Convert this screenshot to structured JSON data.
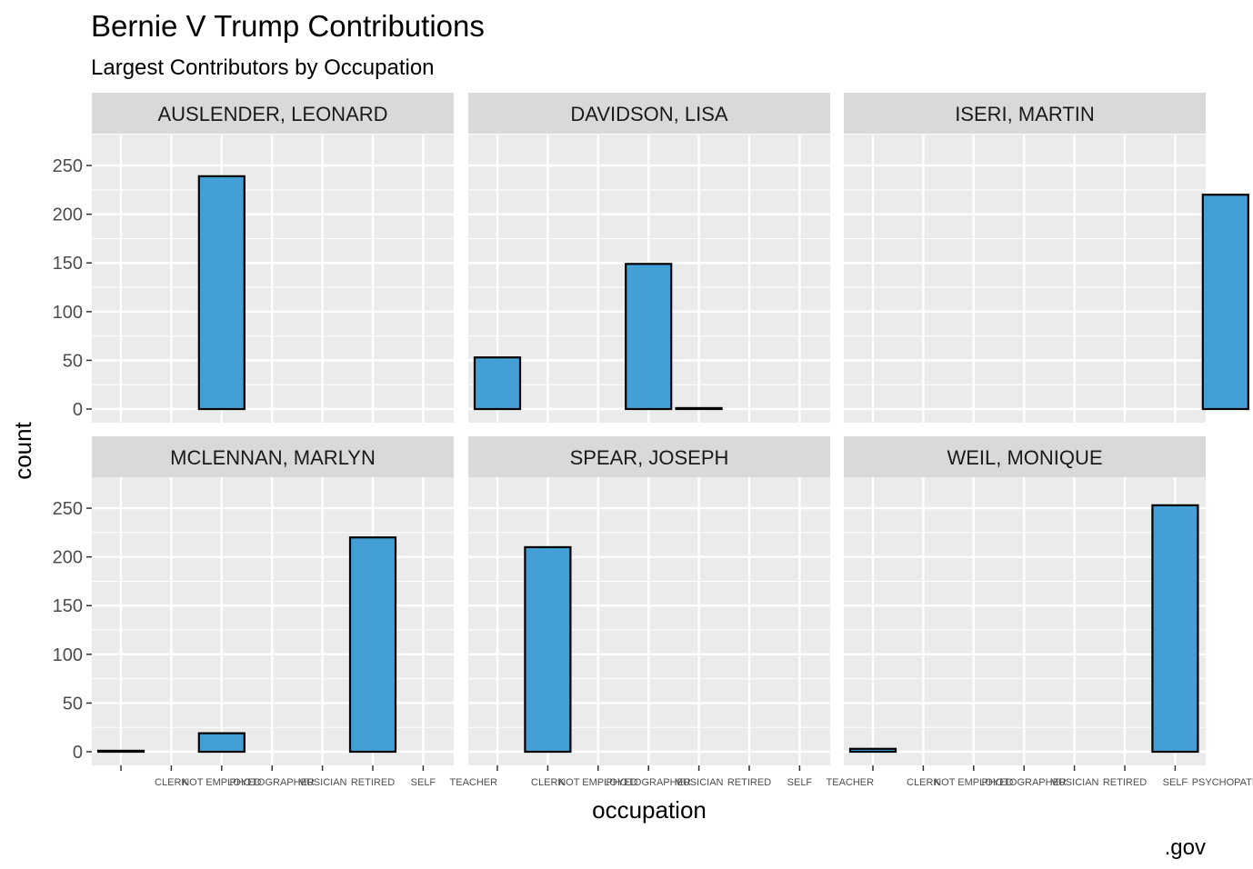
{
  "chart_data": {
    "type": "bar",
    "title": "Bernie V Trump Contributions",
    "subtitle": "Largest Contributors by Occupation",
    "xlabel": "occupation",
    "ylabel": "count",
    "caption": ".gov",
    "ylim": [
      0,
      265
    ],
    "yticks": [
      0,
      50,
      100,
      150,
      200,
      250
    ],
    "grid": true,
    "categories": [
      "",
      "CLERK",
      "NOT EMPLOYED",
      "PHOTOGRAPHER",
      "MUSICIAN",
      "RETIRED",
      "SELF",
      "TEACHER"
    ],
    "bar_color": "#449fd6",
    "bar_outline": "#000000",
    "panel_bg": "#ebebeb",
    "strip_bg": "#d9d9d9",
    "facets": [
      {
        "name": "AUSLENDER, LEONARD",
        "tick_labels": [
          "",
          "CLERK",
          "NOT EMPLOYED",
          "PHOTOGRAPHER",
          "MUSICIAN",
          "RETIRED",
          "SELF",
          "TEACHER"
        ],
        "bars": [
          {
            "x": 2.5,
            "value": 239
          }
        ]
      },
      {
        "name": "DAVIDSON, LISA",
        "tick_labels": [
          "",
          "CLERK",
          "NOT EMPLOYED",
          "PHOTOGRAPHER",
          "MUSICIAN",
          "RETIRED",
          "SELF",
          "TEACHER"
        ],
        "bars": [
          {
            "x": 0.5,
            "value": 53
          },
          {
            "x": 3.5,
            "value": 149
          },
          {
            "x": 4.5,
            "value": 1
          }
        ]
      },
      {
        "name": "ISERI, MARTIN",
        "tick_labels": [
          "",
          "CLERK",
          "NOT EMPLOYED",
          "PHOTOGRAPHER",
          "MUSICIAN",
          "RETIRED",
          "SELF",
          "PSYCHOPATH",
          "TEAC"
        ],
        "bars": [
          {
            "x": 7.5,
            "value": 220
          }
        ]
      },
      {
        "name": "MCLENNAN, MARLYN",
        "tick_labels": [
          "",
          "CLERK",
          "NOT EMPLOYED",
          "PHOTOGRAPHER",
          "MUSICIAN",
          "RETIRED",
          "SELF",
          "TEACHER"
        ],
        "bars": [
          {
            "x": 0.5,
            "value": 1
          },
          {
            "x": 2.5,
            "value": 19
          },
          {
            "x": 5.5,
            "value": 220
          }
        ]
      },
      {
        "name": "SPEAR, JOSEPH",
        "tick_labels": [
          "",
          "CLERK",
          "NOT EMPLOYED",
          "PHOTOGRAPHER",
          "MUSICIAN",
          "RETIRED",
          "SELF",
          "TEACHER"
        ],
        "bars": [
          {
            "x": 1.5,
            "value": 210
          }
        ]
      },
      {
        "name": "WEIL, MONIQUE",
        "tick_labels": [
          "",
          "CLERK",
          "NOT EMPLOYED",
          "PHOTOGRAPHER",
          "MUSICIAN",
          "RETIRED",
          "SELF",
          "PSYCHOPATH",
          "TEAC"
        ],
        "bars": [
          {
            "x": 0.5,
            "value": 3
          },
          {
            "x": 6.5,
            "value": 253
          }
        ]
      }
    ]
  }
}
